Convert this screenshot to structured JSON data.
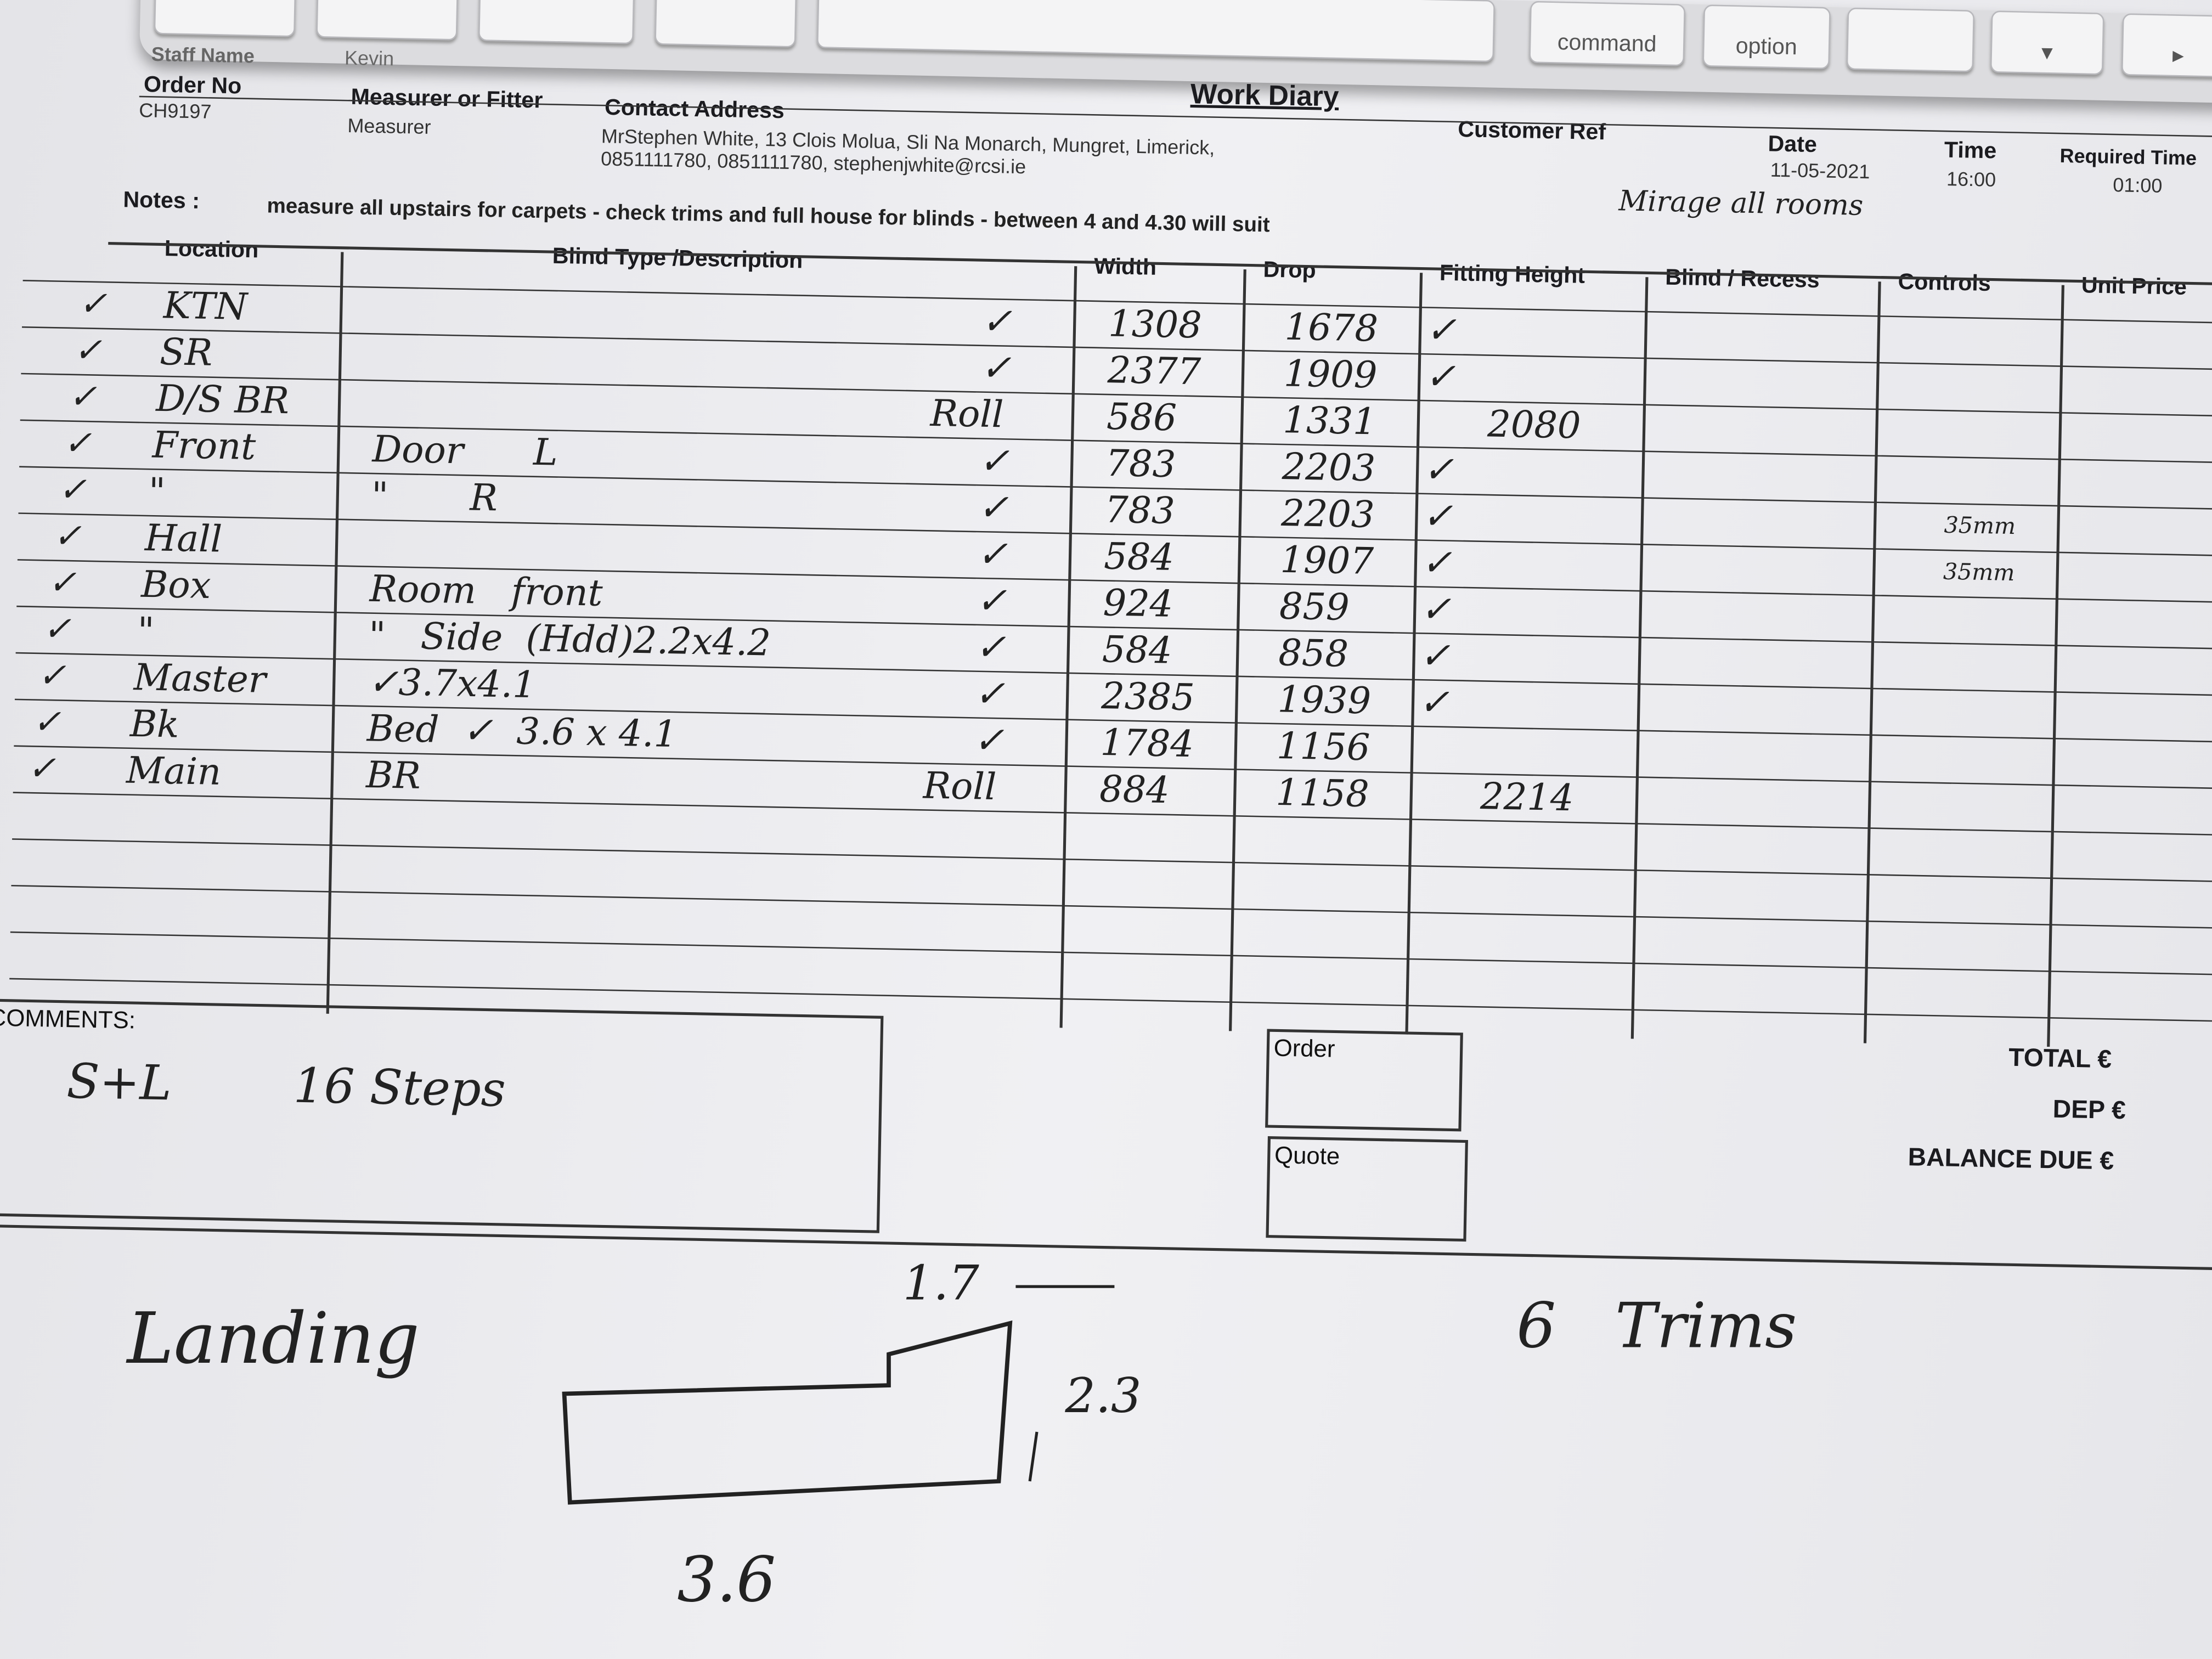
{
  "keyboard": {
    "keys": [
      "command",
      "option"
    ]
  },
  "header": {
    "title": "Work Diary",
    "staff_name_label": "Staff Name",
    "staff_name": "Kevin",
    "order_no_label": "Order No",
    "order_no": "CH9197",
    "measurer_label": "Measurer or Fitter",
    "measurer": "Measurer",
    "contact_label": "Contact Address",
    "contact_line1": "MrStephen White, 13 Clois Molua, Sli Na Monarch, Mungret, Limerick,",
    "contact_line2": "0851111780, 0851111780, stephenjwhite@rcsi.ie",
    "customer_ref_label": "Customer Ref",
    "date_label": "Date",
    "date": "11-05-2021",
    "time_label": "Time",
    "time": "16:00",
    "required_time_label": "Required Time",
    "required_time": "01:00",
    "handwritten_note": "Mirage all rooms"
  },
  "notes": {
    "label": "Notes :",
    "text": "measure all upstairs for carpets - check trims and full house for blinds - between 4 and 4.30 will suit"
  },
  "table": {
    "columns": [
      "Location",
      "Blind Type /Description",
      "Width",
      "Drop",
      "Fitting Height",
      "Blind / Recess",
      "Controls",
      "Unit Price"
    ],
    "rows": [
      {
        "check": "✓",
        "location": "KTN",
        "desc": "",
        "mark": "✓",
        "width": "1308",
        "drop": "1678",
        "fitting": "✓",
        "controls": ""
      },
      {
        "check": "✓",
        "location": "SR",
        "desc": "",
        "mark": "✓",
        "width": "2377",
        "drop": "1909",
        "fitting": "✓",
        "controls": ""
      },
      {
        "check": "✓",
        "location": "D/S BR",
        "desc": "",
        "mark": "Roll",
        "width": "586",
        "drop": "1331",
        "fitting": "2080",
        "controls": ""
      },
      {
        "check": "✓",
        "location": "Front",
        "desc": "Door      L",
        "mark": "✓",
        "width": "783",
        "drop": "2203",
        "fitting": "✓",
        "controls": ""
      },
      {
        "check": "✓",
        "location": "\"",
        "desc": "\"       R",
        "mark": "✓",
        "width": "783",
        "drop": "2203",
        "fitting": "✓",
        "controls": "35mm"
      },
      {
        "check": "✓",
        "location": "Hall",
        "desc": "",
        "mark": "✓",
        "width": "584",
        "drop": "1907",
        "fitting": "✓",
        "controls": "35mm"
      },
      {
        "check": "✓",
        "location": "Box",
        "desc": "Room   front",
        "mark": "✓",
        "width": "924",
        "drop": "859",
        "fitting": "✓",
        "controls": ""
      },
      {
        "check": "✓",
        "location": "\"",
        "desc": "\"   Side  (Hdd)2.2x4.2",
        "mark": "✓",
        "width": "584",
        "drop": "858",
        "fitting": "✓",
        "controls": ""
      },
      {
        "check": "✓",
        "location": "Master",
        "desc": "✓3.7x4.1",
        "mark": "✓",
        "width": "2385",
        "drop": "1939",
        "fitting": "✓",
        "controls": ""
      },
      {
        "check": "✓",
        "location": "Bk",
        "desc": "Bed  ✓  3.6 x 4.1",
        "mark": "✓",
        "width": "1784",
        "drop": "1156",
        "fitting": "",
        "controls": ""
      },
      {
        "check": "✓",
        "location": "Main",
        "desc": "BR",
        "mark": "Roll",
        "width": "884",
        "drop": "1158",
        "fitting": "2214",
        "controls": ""
      }
    ]
  },
  "comments": {
    "label": "COMMENTS:",
    "text": "S+L        16 Steps"
  },
  "order_label": "Order",
  "quote_label": "Quote",
  "totals": {
    "total": "TOTAL €",
    "dep": "DEP €",
    "balance": "BALANCE DUE €"
  },
  "sketch": {
    "title": "Landing",
    "top": "1.7",
    "side": "2.3",
    "bottom": "3.6",
    "trims": "6   Trims"
  }
}
